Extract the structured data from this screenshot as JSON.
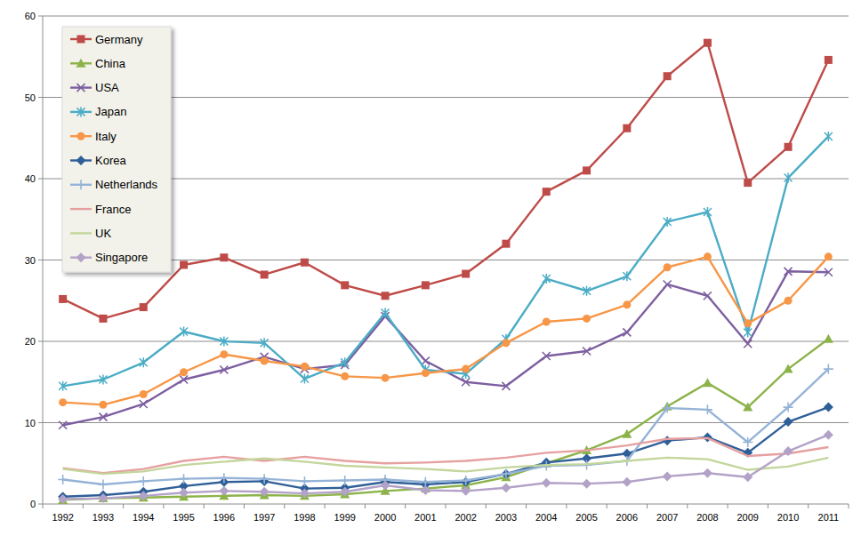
{
  "chart_data": {
    "type": "line",
    "categories": [
      "1992",
      "1993",
      "1994",
      "1995",
      "1996",
      "1997",
      "1998",
      "1999",
      "2000",
      "2001",
      "2002",
      "2003",
      "2004",
      "2005",
      "2006",
      "2007",
      "2008",
      "2009",
      "2010",
      "2011"
    ],
    "ylim": [
      0,
      60
    ],
    "yticks": [
      0,
      10,
      20,
      30,
      40,
      50,
      60
    ],
    "grid": true,
    "legend": "top-left",
    "series": [
      {
        "name": "Germany",
        "color": "#be4b48",
        "marker": "square",
        "values": [
          25.2,
          22.8,
          24.2,
          29.4,
          30.3,
          28.2,
          29.7,
          26.9,
          25.6,
          26.9,
          28.3,
          32.0,
          38.4,
          41.0,
          46.2,
          52.6,
          56.7,
          39.5,
          43.9,
          54.6
        ]
      },
      {
        "name": "China",
        "color": "#8cb34a",
        "marker": "triangle",
        "values": [
          0.5,
          0.7,
          0.8,
          0.9,
          1.0,
          1.1,
          1.0,
          1.2,
          1.6,
          1.9,
          2.3,
          3.3,
          5.0,
          6.6,
          8.6,
          12.0,
          14.9,
          11.9,
          16.6,
          20.3
        ]
      },
      {
        "name": "USA",
        "color": "#7d5fa0",
        "marker": "x",
        "values": [
          9.7,
          10.7,
          12.3,
          15.3,
          16.5,
          18.1,
          16.6,
          17.1,
          23.1,
          17.6,
          15.0,
          14.5,
          18.2,
          18.8,
          21.1,
          27.0,
          25.6,
          19.7,
          28.6,
          28.5
        ]
      },
      {
        "name": "Japan",
        "color": "#4bacc6",
        "marker": "star",
        "values": [
          14.5,
          15.3,
          17.4,
          21.2,
          20.0,
          19.8,
          15.4,
          17.4,
          23.5,
          16.5,
          16.0,
          20.3,
          27.7,
          26.2,
          28.0,
          34.7,
          35.9,
          21.1,
          40.1,
          45.2
        ]
      },
      {
        "name": "Italy",
        "color": "#f79646",
        "marker": "circle",
        "values": [
          12.5,
          12.2,
          13.5,
          16.2,
          18.4,
          17.6,
          16.9,
          15.7,
          15.5,
          16.1,
          16.6,
          19.8,
          22.4,
          22.8,
          24.5,
          29.1,
          30.4,
          22.2,
          25.0,
          30.4
        ]
      },
      {
        "name": "Korea",
        "color": "#2f5f98",
        "marker": "diamond",
        "values": [
          0.9,
          1.1,
          1.5,
          2.2,
          2.7,
          2.8,
          1.9,
          2.0,
          2.7,
          2.4,
          2.7,
          3.7,
          5.1,
          5.6,
          6.2,
          7.8,
          8.2,
          6.3,
          10.1,
          11.9
        ]
      },
      {
        "name": "Netherlands",
        "color": "#95b3d7",
        "marker": "plus",
        "values": [
          3.0,
          2.4,
          2.8,
          3.1,
          3.2,
          3.1,
          2.8,
          2.9,
          3.0,
          2.7,
          2.9,
          3.7,
          4.7,
          4.8,
          5.3,
          11.8,
          11.6,
          7.6,
          11.9,
          16.6
        ]
      },
      {
        "name": "France",
        "color": "#e6a0a0",
        "marker": "none",
        "values": [
          4.4,
          3.8,
          4.3,
          5.3,
          5.8,
          5.3,
          5.8,
          5.3,
          5.0,
          5.1,
          5.3,
          5.7,
          6.3,
          6.6,
          7.2,
          8.0,
          8.1,
          5.9,
          6.2,
          7.0
        ]
      },
      {
        "name": "UK",
        "color": "#c3d69b",
        "marker": "none",
        "values": [
          4.3,
          3.7,
          4.0,
          4.8,
          5.2,
          5.6,
          5.2,
          4.7,
          4.5,
          4.3,
          4.0,
          4.5,
          4.8,
          4.9,
          5.3,
          5.7,
          5.5,
          4.2,
          4.6,
          5.7
        ]
      },
      {
        "name": "Singapore",
        "color": "#b3a2c7",
        "marker": "diamond",
        "values": [
          0.6,
          0.7,
          1.0,
          1.4,
          1.6,
          1.5,
          1.3,
          1.5,
          2.3,
          1.7,
          1.6,
          2.0,
          2.6,
          2.5,
          2.7,
          3.4,
          3.8,
          3.3,
          6.5,
          8.5
        ]
      }
    ]
  }
}
